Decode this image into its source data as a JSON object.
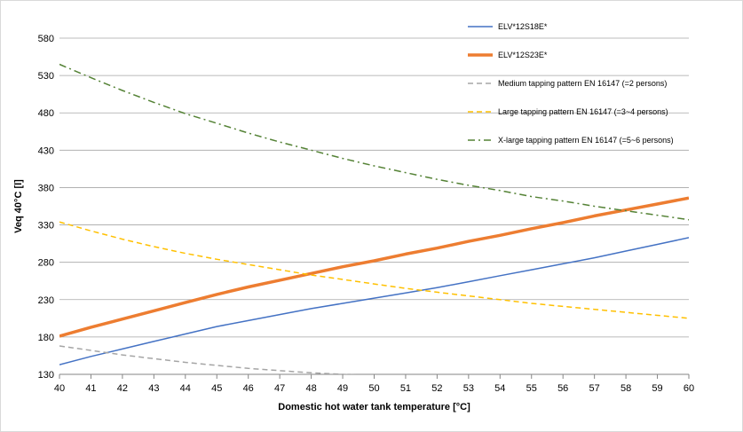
{
  "chart_data": {
    "type": "line",
    "xlabel": "Domestic hot water tank temperature [°C]",
    "ylabel": "Veq 40°C [l]",
    "xlim": [
      40,
      60
    ],
    "ylim": [
      130,
      580
    ],
    "xticks": [
      40,
      41,
      42,
      43,
      44,
      45,
      46,
      47,
      48,
      49,
      50,
      51,
      52,
      53,
      54,
      55,
      56,
      57,
      58,
      59,
      60
    ],
    "yticks": [
      130,
      180,
      230,
      280,
      330,
      380,
      430,
      480,
      530,
      580
    ],
    "grid": "horizontal",
    "legend_position": "top-right",
    "series": [
      {
        "name": "ELV*12S18E*",
        "color": "#4472c4",
        "style": "solid",
        "width": "thin",
        "x": [
          40,
          41,
          42,
          43,
          44,
          45,
          46,
          47,
          48,
          49,
          50,
          51,
          52,
          53,
          54,
          55,
          56,
          57,
          58,
          59,
          60
        ],
        "y": [
          143,
          154,
          164,
          174,
          184,
          194,
          202,
          210,
          218,
          225,
          232,
          239,
          246,
          254,
          262,
          270,
          278,
          286,
          295,
          304,
          313
        ]
      },
      {
        "name": "ELV*12S23E*",
        "color": "#ed7d31",
        "style": "solid",
        "width": "thick",
        "x": [
          40,
          41,
          42,
          43,
          44,
          45,
          46,
          47,
          48,
          49,
          50,
          51,
          52,
          53,
          54,
          55,
          56,
          57,
          58,
          59,
          60
        ],
        "y": [
          181,
          193,
          204,
          215,
          226,
          237,
          247,
          256,
          265,
          274,
          282,
          291,
          299,
          308,
          316,
          325,
          333,
          342,
          350,
          358,
          366
        ]
      },
      {
        "name": "Medium tapping pattern EN 16147 (=2 persons)",
        "color": "#a5a5a5",
        "style": "dashed",
        "width": "thin",
        "x": [
          40,
          41,
          42,
          43,
          44,
          45,
          46,
          47,
          48,
          49,
          50
        ],
        "y": [
          168,
          162,
          156,
          151,
          146,
          142,
          138,
          135,
          132,
          130,
          128
        ]
      },
      {
        "name": "Large tapping pattern EN 16147 (=3~4 persons)",
        "color": "#ffc000",
        "style": "dashed",
        "width": "thin",
        "x": [
          40,
          41,
          42,
          43,
          44,
          45,
          46,
          47,
          48,
          49,
          50,
          51,
          52,
          53,
          54,
          55,
          56,
          57,
          58,
          59,
          60
        ],
        "y": [
          334,
          322,
          311,
          301,
          292,
          284,
          277,
          270,
          263,
          257,
          251,
          245,
          240,
          235,
          230,
          225,
          221,
          217,
          213,
          209,
          205
        ]
      },
      {
        "name": "X-large tapping pattern EN 16147 (=5~6 persons)",
        "color": "#548235",
        "style": "dashdot",
        "width": "thin",
        "x": [
          40,
          41,
          42,
          43,
          44,
          45,
          46,
          47,
          48,
          49,
          50,
          51,
          52,
          53,
          54,
          55,
          56,
          57,
          58,
          59,
          60
        ],
        "y": [
          545,
          527,
          510,
          494,
          479,
          466,
          453,
          441,
          430,
          419,
          409,
          400,
          391,
          383,
          376,
          368,
          362,
          355,
          349,
          343,
          337
        ]
      }
    ]
  }
}
